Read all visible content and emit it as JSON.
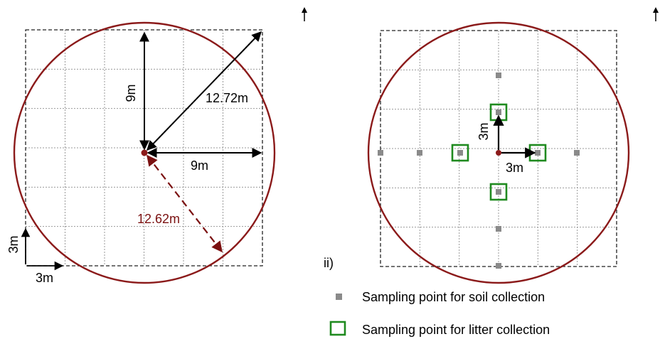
{
  "colors": {
    "circle": "#8b1a1a",
    "center": "#8b1a1a",
    "grid": "#999999",
    "frame": "#222222",
    "arrow": "#000000",
    "radius_arrow": "#7b1111",
    "soil_point": "#8a8a8a",
    "litter_box": "#1f8a1f"
  },
  "panel_left": {
    "labels": {
      "radius_top": "9m",
      "radius_right": "9m",
      "diagonal": "12.72m",
      "circle_radius": "12.62m",
      "cell_height": "3m",
      "cell_width": "3m"
    }
  },
  "panel_right": {
    "marker": "ii)",
    "labels": {
      "offset_up": "3m",
      "offset_right": "3m"
    }
  },
  "legend": {
    "soil": "Sampling point for soil collection",
    "litter": "Sampling point for litter collection"
  }
}
